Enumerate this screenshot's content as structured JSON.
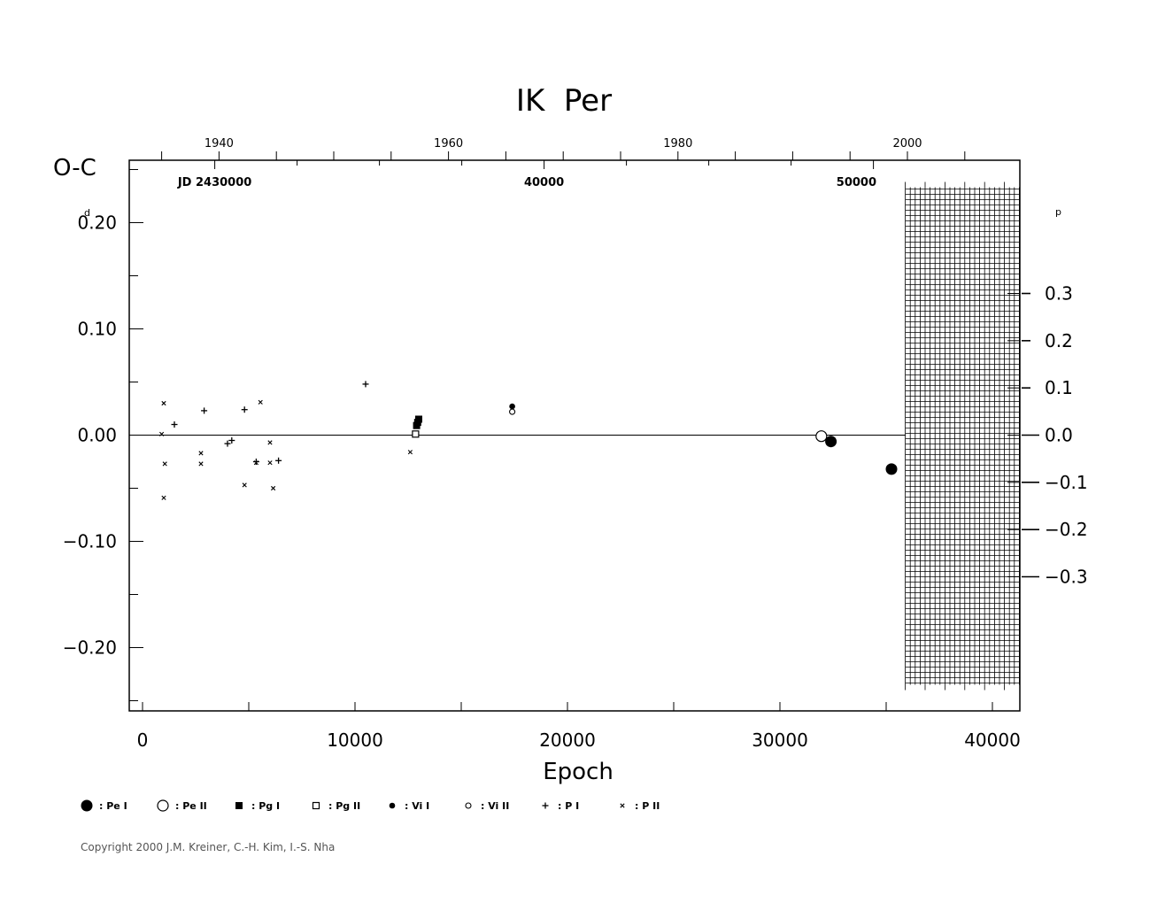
{
  "chart_data": {
    "type": "scatter",
    "title": "IK  Per",
    "ylabel": "O-C",
    "ylabel_unit": "d",
    "xlabel": "Epoch",
    "xlim": [
      -600,
      41200
    ],
    "ylim": [
      -0.26,
      0.26
    ],
    "x_ticks": [
      0,
      10000,
      20000,
      30000,
      40000
    ],
    "y_ticks": [
      0.2,
      0.1,
      0.0,
      -0.1,
      -0.2
    ],
    "y_tick_labels": [
      "0.20",
      "0.10",
      "0.00",
      "−0.10",
      "−0.20"
    ],
    "y2_unit": "p",
    "y2_ticks": [
      0.3,
      0.2,
      0.1,
      0.0,
      -0.1,
      -0.2,
      -0.3
    ],
    "y2_tick_labels": [
      "0.3",
      "0.2",
      "0.1",
      "0.0",
      "−0.1",
      "−0.2",
      "−0.3"
    ],
    "y2_per_y1": 1.5,
    "year_ticks": [
      {
        "label": "1940",
        "epoch": 3600
      },
      {
        "label": "1960",
        "epoch": 14400
      },
      {
        "label": "1980",
        "epoch": 25200
      },
      {
        "label": "2000",
        "epoch": 36000
      }
    ],
    "jd_labels": [
      {
        "label": "JD  2430000",
        "epoch": 3400
      },
      {
        "label": "40000",
        "epoch": 18900
      },
      {
        "label": "50000",
        "epoch": 33600
      }
    ],
    "zero_line_end": 35900,
    "grid_region": {
      "x_start": 35900,
      "x_end": 41200,
      "y_min": -0.235,
      "y_max": 0.235
    },
    "series": [
      {
        "name": "Pe I",
        "marker": "filled-circle-large",
        "points": [
          [
            32400,
            -0.006
          ],
          [
            35250,
            -0.032
          ]
        ]
      },
      {
        "name": "Pe II",
        "marker": "open-circle-large",
        "points": [
          [
            31950,
            -0.001
          ]
        ]
      },
      {
        "name": "Pg I",
        "marker": "filled-square",
        "points": [
          [
            12900,
            0.009
          ],
          [
            12950,
            0.012
          ],
          [
            13000,
            0.015
          ]
        ]
      },
      {
        "name": "Pg II",
        "marker": "open-square",
        "points": [
          [
            12850,
            0.001
          ]
        ]
      },
      {
        "name": "Vi I",
        "marker": "filled-circle-small",
        "points": [
          [
            17400,
            0.027
          ]
        ]
      },
      {
        "name": "Vi II",
        "marker": "open-circle-small",
        "points": [
          [
            17400,
            0.022
          ]
        ]
      },
      {
        "name": "P I",
        "marker": "plus",
        "points": [
          [
            1500,
            0.01
          ],
          [
            2900,
            0.023
          ],
          [
            4000,
            -0.008
          ],
          [
            4200,
            -0.005
          ],
          [
            4800,
            0.024
          ],
          [
            5350,
            -0.025
          ],
          [
            6400,
            -0.024
          ],
          [
            10500,
            0.048
          ]
        ]
      },
      {
        "name": "P II",
        "marker": "cross",
        "points": [
          [
            900,
            0.001
          ],
          [
            1000,
            0.03
          ],
          [
            1050,
            -0.027
          ],
          [
            1000,
            -0.059
          ],
          [
            2750,
            -0.017
          ],
          [
            2750,
            -0.027
          ],
          [
            4800,
            -0.047
          ],
          [
            5350,
            -0.026
          ],
          [
            5550,
            0.031
          ],
          [
            6000,
            -0.007
          ],
          [
            6000,
            -0.026
          ],
          [
            6150,
            -0.05
          ],
          [
            12600,
            -0.016
          ]
        ]
      }
    ],
    "legend": {
      "placement": "bottom-left",
      "items": [
        {
          "marker": "filled-circle-large",
          "label": ": Pe I"
        },
        {
          "marker": "open-circle-large",
          "label": ": Pe II"
        },
        {
          "marker": "filled-square",
          "label": ": Pg I"
        },
        {
          "marker": "open-square",
          "label": ": Pg II"
        },
        {
          "marker": "filled-circle-small",
          "label": ": Vi I"
        },
        {
          "marker": "open-circle-small",
          "label": ": Vi II"
        },
        {
          "marker": "plus",
          "label": ": P I"
        },
        {
          "marker": "cross",
          "label": ": P II"
        }
      ]
    },
    "copyright": "Copyright 2000 J.M. Kreiner, C.-H. Kim, I.-S. Nha",
    "colors": {
      "ink": "#000000",
      "copyright": "#555555",
      "background": "#ffffff"
    }
  }
}
